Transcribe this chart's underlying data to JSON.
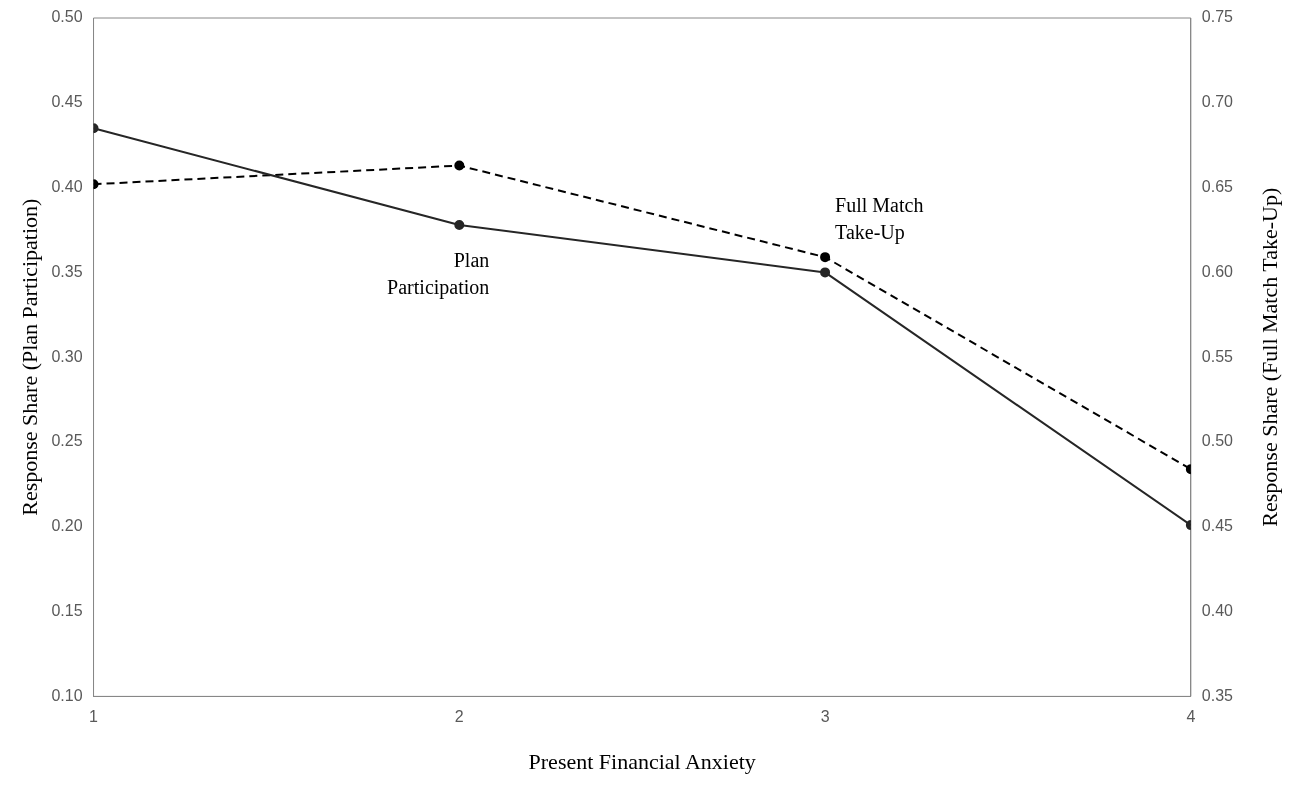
{
  "chart_data": {
    "type": "line",
    "xlabel": "Present Financial Anxiety",
    "ylabel": "Response Share (Plan Participation)",
    "y2label": "Response Share (Full Match Take-Up)",
    "x": [
      1,
      2,
      3,
      4
    ],
    "xlim": [
      1,
      4
    ],
    "xticks": [
      1,
      2,
      3,
      4
    ],
    "ylim": [
      0.1,
      0.5
    ],
    "yticks": [
      {
        "value": 0.1,
        "label": "0.10"
      },
      0.15,
      {
        "value": 0.2,
        "label": "0.20"
      },
      0.25,
      {
        "value": 0.3,
        "label": "0.30"
      },
      0.35,
      {
        "value": 0.4,
        "label": "0.40"
      },
      0.45,
      {
        "value": 0.5,
        "label": "0.50"
      }
    ],
    "y2lim": [
      0.35,
      0.75
    ],
    "y2ticks": [
      0.35,
      {
        "value": 0.4,
        "label": "0.40"
      },
      0.45,
      {
        "value": 0.5,
        "label": "0.50"
      },
      0.55,
      {
        "value": 0.6,
        "label": "0.60"
      },
      0.65,
      {
        "value": 0.7,
        "label": "0.70"
      },
      0.75
    ],
    "grid": false,
    "legend": false,
    "marker": "circle",
    "series": [
      {
        "name": "Plan Participation",
        "color": "#262626",
        "values": [
          0.435,
          0.378,
          0.35,
          0.201
        ],
        "line_style": "solid"
      },
      {
        "name": "Full Match Take-Up",
        "color": "#000000",
        "values": [
          0.652,
          0.663,
          0.609,
          0.484
        ],
        "axis": "y2",
        "line_style": "dashed"
      }
    ]
  }
}
